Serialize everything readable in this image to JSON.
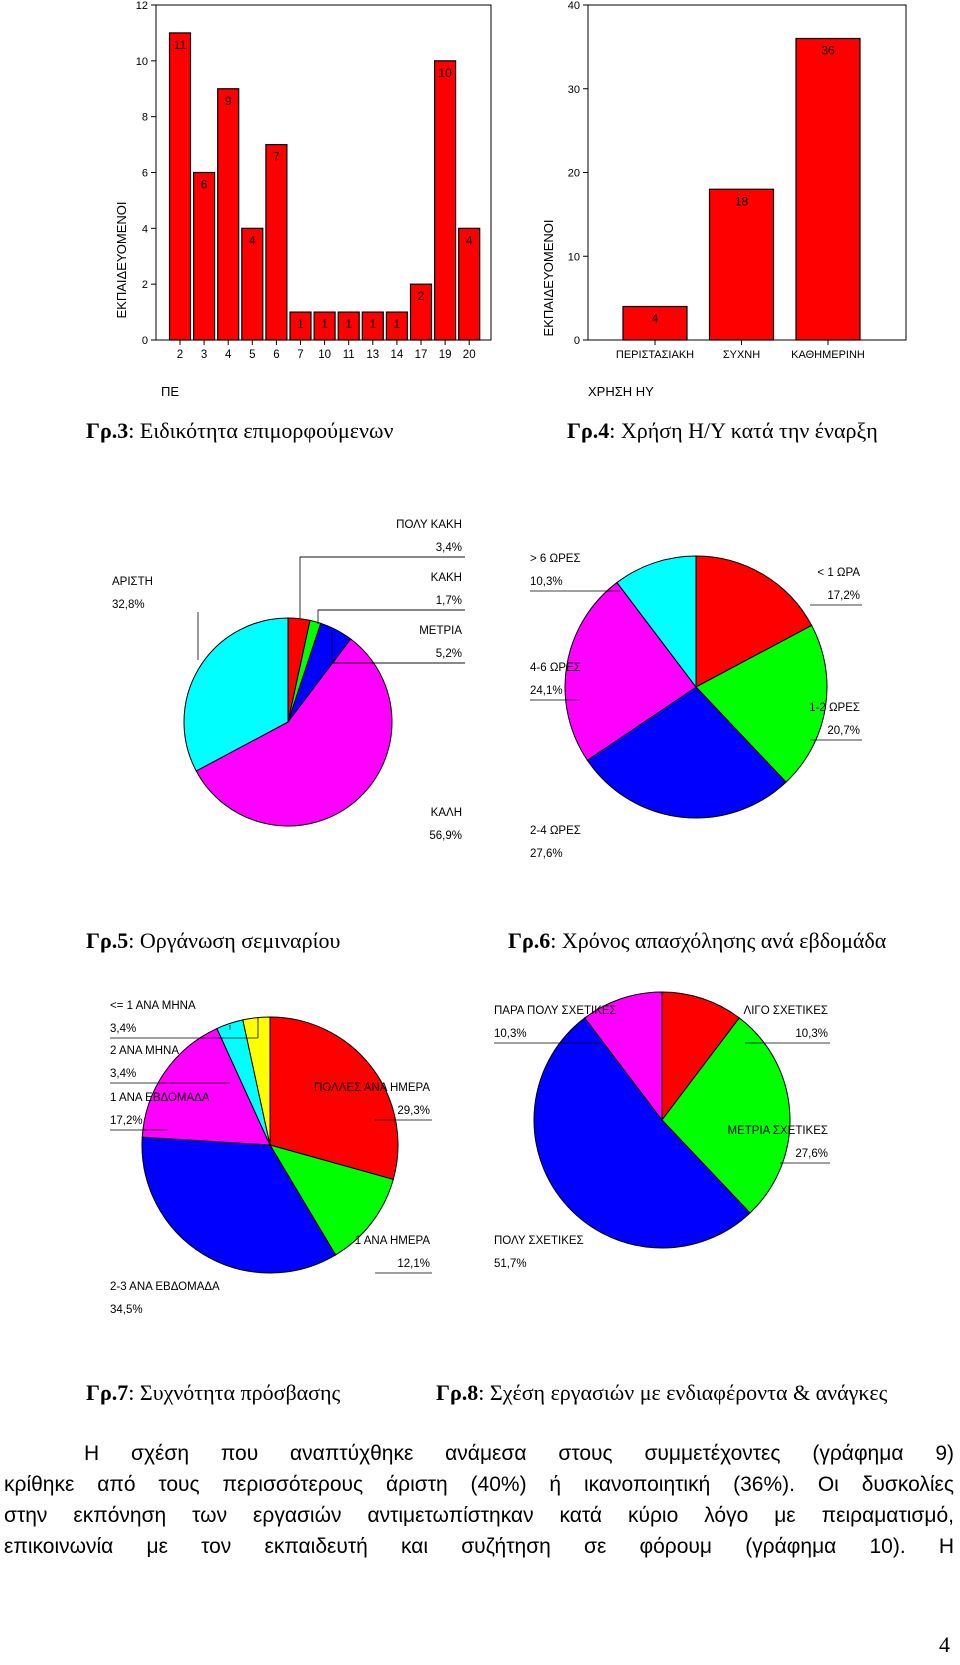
{
  "colors": {
    "red": "#ff0000",
    "green": "#00ff00",
    "blue": "#0000ff",
    "magenta": "#ff00ff",
    "cyan": "#00ffff",
    "yellow": "#ffff00"
  },
  "fig3": {
    "caption_prefix": "Γρ.3",
    "caption_text": ": Ειδικότητα επιμορφούμενων",
    "chart_data": {
      "type": "bar",
      "categories": [
        "2",
        "3",
        "4",
        "5",
        "6",
        "7",
        "10",
        "11",
        "13",
        "14",
        "17",
        "19",
        "20"
      ],
      "values": [
        11,
        6,
        9,
        4,
        7,
        1,
        1,
        1,
        1,
        1,
        2,
        10,
        4
      ],
      "yticks": [
        "0",
        "2",
        "4",
        "6",
        "8",
        "10",
        "12"
      ],
      "ylim": [
        0,
        12
      ],
      "ylabel": "ΕΚΠΑΙΔΕΥΟΜΕΝΟΙ",
      "xlabel": "ΠΕ"
    }
  },
  "fig4": {
    "caption_prefix": "Γρ.4",
    "caption_text": ": Χρήση Η/Υ κατά την έναρξη",
    "chart_data": {
      "type": "bar",
      "categories": [
        "ΠΕΡΙΣΤΑΣΙΑΚΗ",
        "ΣΥΧΝΗ",
        "ΚΑΘΗΜΕΡΙΝΗ"
      ],
      "values": [
        4,
        18,
        36
      ],
      "yticks": [
        "0",
        "10",
        "20",
        "30",
        "40"
      ],
      "ylim": [
        0,
        40
      ],
      "ylabel": "ΕΚΠΑΙΔΕΥΟΜΕΝΟΙ",
      "xlabel": "ΧΡΗΣΗ ΗΥ"
    }
  },
  "fig5": {
    "caption_prefix": "Γρ.5",
    "caption_text": ": Οργάνωση σεμιναρίου",
    "chart_data": {
      "type": "pie",
      "slices": [
        {
          "label": "ΠΟΛΥ ΚΑΚΗ",
          "value": 3.4,
          "pct": "3,4%",
          "color": "#ff0000"
        },
        {
          "label": "ΚΑΚΗ",
          "value": 1.7,
          "pct": "1,7%",
          "color": "#00ff00"
        },
        {
          "label": "ΜΕΤΡΙΑ",
          "value": 5.2,
          "pct": "5,2%",
          "color": "#0000ff"
        },
        {
          "label": "ΚΑΛΗ",
          "value": 56.9,
          "pct": "56,9%",
          "color": "#ff00ff"
        },
        {
          "label": "ΑΡΙΣΤΗ",
          "value": 32.8,
          "pct": "32,8%",
          "color": "#00ffff"
        }
      ]
    }
  },
  "fig6": {
    "caption_prefix": "Γρ.6",
    "caption_text": ": Χρόνος απασχόλησης ανά εβδομάδα",
    "chart_data": {
      "type": "pie",
      "slices": [
        {
          "label": "< 1 ΩΡΑ",
          "value": 17.2,
          "pct": "17,2%",
          "color": "#ff0000"
        },
        {
          "label": "1-2 ΩΡΕΣ",
          "value": 20.7,
          "pct": "20,7%",
          "color": "#00ff00"
        },
        {
          "label": "2-4 ΩΡΕΣ",
          "value": 27.6,
          "pct": "27,6%",
          "color": "#0000ff"
        },
        {
          "label": "4-6 ΩΡΕΣ",
          "value": 24.1,
          "pct": "24,1%",
          "color": "#ff00ff"
        },
        {
          "label": "> 6 ΩΡΕΣ",
          "value": 10.3,
          "pct": "10,3%",
          "color": "#00ffff"
        }
      ]
    }
  },
  "fig7": {
    "caption_prefix": "Γρ.7",
    "caption_text": ": Συχνότητα πρόσβασης",
    "chart_data": {
      "type": "pie",
      "slices": [
        {
          "label": "ΠΟΛΛΕΣ ΑΝΑ ΗΜΕΡΑ",
          "value": 29.3,
          "pct": "29,3%",
          "color": "#ff0000"
        },
        {
          "label": "1 ΑΝΑ ΗΜΕΡΑ",
          "value": 12.1,
          "pct": "12,1%",
          "color": "#00ff00"
        },
        {
          "label": "2-3 ΑΝΑ ΕΒΔΟΜΑΔΑ",
          "value": 34.5,
          "pct": "34,5%",
          "color": "#0000ff"
        },
        {
          "label": "1 ΑΝΑ ΕΒΔΟΜΑΔΑ",
          "value": 17.2,
          "pct": "17,2%",
          "color": "#ff00ff"
        },
        {
          "label": "2 ΑΝΑ ΜΗΝΑ",
          "value": 3.4,
          "pct": "3,4%",
          "color": "#00ffff"
        },
        {
          "label": "<= 1 ΑΝΑ ΜΗΝΑ",
          "value": 3.4,
          "pct": "3,4%",
          "color": "#ffff00"
        }
      ]
    }
  },
  "fig8": {
    "caption_prefix": "Γρ.8",
    "caption_text": ": Σχέση εργασιών με ενδιαφέροντα & ανάγκες",
    "chart_data": {
      "type": "pie",
      "slices": [
        {
          "label": "ΛΙΓΟ ΣΧΕΤΙΚΕΣ",
          "value": 10.3,
          "pct": "10,3%",
          "color": "#ff0000"
        },
        {
          "label": "ΜΕΤΡΙΑ ΣΧΕΤΙΚΕΣ",
          "value": 27.6,
          "pct": "27,6%",
          "color": "#00ff00"
        },
        {
          "label": "ΠΟΛΥ ΣΧΕΤΙΚΕΣ",
          "value": 51.7,
          "pct": "51,7%",
          "color": "#0000ff"
        },
        {
          "label": "ΠΑΡΑ ΠΟΛΥ ΣΧΕΤΙΚΕΣ",
          "value": 10.3,
          "pct": "10,3%",
          "color": "#ff00ff"
        }
      ]
    }
  },
  "paragraph": {
    "line1": "Η σχέση που αναπτύχθηκε ανάμεσα στους συμμετέχοντες (γράφημα 9)",
    "line2": "κρίθηκε από τους περισσότερους άριστη (40%) ή ικανοποιητική (36%). Οι δυσκολίες",
    "line3": "στην εκπόνηση των εργασιών αντιμετωπίστηκαν κατά κύριο λόγο με πειραματισμό,",
    "line4": "επικοινωνία με τον εκπαιδευτή και συζήτηση σε φόρουμ (γράφημα 10). Η"
  },
  "page_number": "4"
}
